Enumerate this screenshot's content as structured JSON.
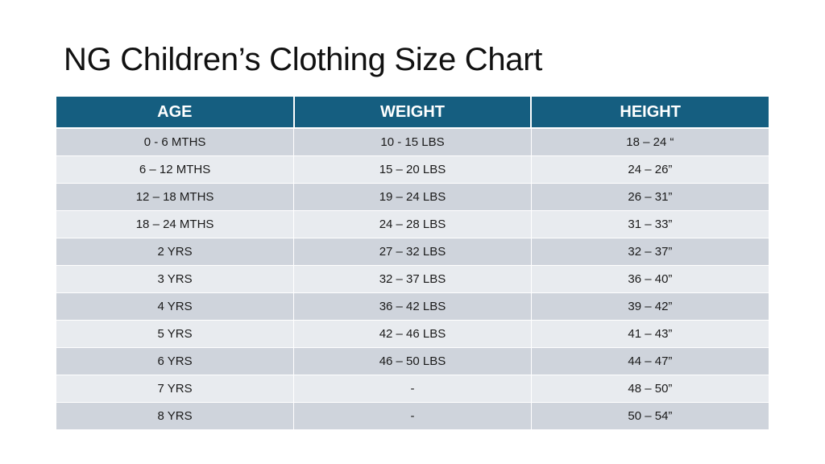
{
  "title": "NG Children’s Clothing Size Chart",
  "table": {
    "headers": [
      "AGE",
      "WEIGHT",
      "HEIGHT"
    ],
    "rows": [
      [
        "0 - 6 MTHS",
        "10 - 15 LBS",
        "18 – 24 “"
      ],
      [
        "6 – 12 MTHS",
        "15 – 20 LBS",
        "24 – 26”"
      ],
      [
        "12 – 18 MTHS",
        "19 – 24 LBS",
        "26 – 31”"
      ],
      [
        "18 – 24 MTHS",
        "24 – 28 LBS",
        "31 – 33”"
      ],
      [
        "2 YRS",
        "27 – 32 LBS",
        "32 – 37”"
      ],
      [
        "3 YRS",
        "32 – 37 LBS",
        "36 – 40”"
      ],
      [
        "4 YRS",
        "36 – 42 LBS",
        "39 – 42”"
      ],
      [
        "5 YRS",
        "42 – 46 LBS",
        "41 – 43”"
      ],
      [
        "6 YRS",
        "46 – 50 LBS",
        "44 – 47”"
      ],
      [
        "7 YRS",
        "-",
        "48 – 50”"
      ],
      [
        "8 YRS",
        "-",
        "50 – 54”"
      ]
    ]
  },
  "colors": {
    "header_bg": "#155e80",
    "row_dark": "#cfd4dc",
    "row_light": "#e8ebef"
  }
}
